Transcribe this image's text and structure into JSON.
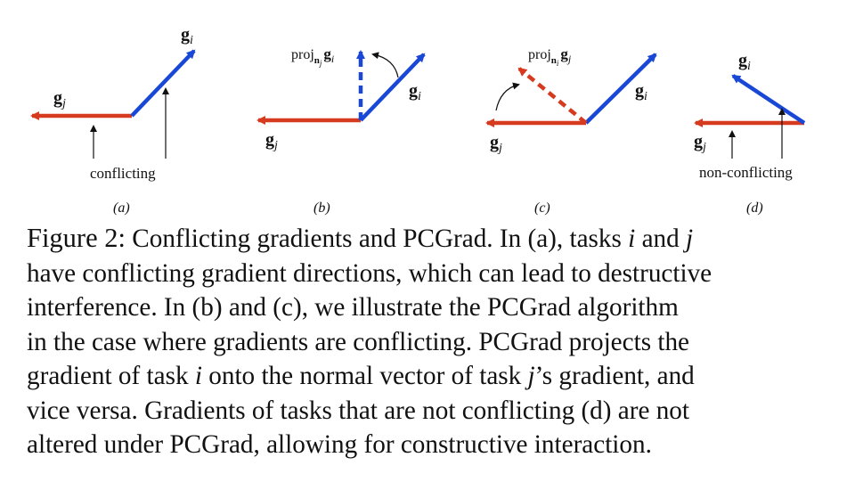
{
  "figure": {
    "colors": {
      "red": "#d63a1f",
      "blue": "#1a48d6",
      "ink": "#111111"
    },
    "vector_symbol": "g",
    "panels": {
      "a": {
        "label": "(a)",
        "annotation": "conflicting",
        "gi_sub": "i",
        "gj_sub": "j"
      },
      "b": {
        "label": "(b)",
        "gi_sub": "i",
        "gj_sub": "j",
        "proj": {
          "prefix": "proj",
          "n": "n",
          "n_sub": "j",
          "g": "g",
          "g_sub": "i"
        }
      },
      "c": {
        "label": "(c)",
        "gi_sub": "i",
        "gj_sub": "j",
        "proj": {
          "prefix": "proj",
          "n": "n",
          "n_sub": "i",
          "g": "g",
          "g_sub": "j"
        }
      },
      "d": {
        "label": "(d)",
        "annotation": "non-conflicting",
        "gi_sub": "i",
        "gj_sub": "j"
      }
    }
  },
  "caption": {
    "label": "Figure 2:",
    "lines": [
      [
        {
          "t": " Conflicting gradients and PCGrad. In (a), tasks "
        },
        {
          "t": "i",
          "i": true
        },
        {
          "t": " and "
        },
        {
          "t": "j",
          "i": true
        }
      ],
      [
        {
          "t": "have conflicting gradient directions, which can lead to destructive"
        }
      ],
      [
        {
          "t": "interference.  In (b) and (c), we illustrate the PCGrad algorithm"
        }
      ],
      [
        {
          "t": "in the case where gradients are conflicting. PCGrad projects the"
        }
      ],
      [
        {
          "t": "gradient of task "
        },
        {
          "t": "i",
          "i": true
        },
        {
          "t": " onto the normal vector of task "
        },
        {
          "t": "j",
          "i": true
        },
        {
          "t": "’s gradient, and"
        }
      ],
      [
        {
          "t": "vice versa. Gradients of tasks that are not conflicting (d) are not"
        }
      ],
      [
        {
          "t": "altered under PCGrad, allowing for constructive interaction."
        }
      ]
    ]
  }
}
